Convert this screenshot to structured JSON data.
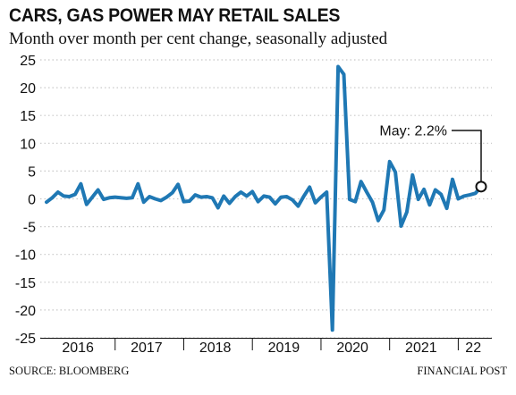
{
  "header": {
    "title": "CARS, GAS POWER MAY RETAIL SALES",
    "subtitle": "Month over month per cent change, seasonally adjusted"
  },
  "footer": {
    "source": "SOURCE: BLOOMBERG",
    "credit": "FINANCIAL POST"
  },
  "colors": {
    "line": "#1f78b4",
    "grid": "#c8c8c8",
    "text": "#111111"
  },
  "chart_data": {
    "type": "line",
    "title": "CARS, GAS POWER MAY RETAIL SALES",
    "subtitle": "Month over month per cent change, seasonally adjusted",
    "xlabel": "",
    "ylabel": "",
    "ylim": [
      -25,
      25
    ],
    "yticks": [
      25,
      20,
      15,
      10,
      5,
      0,
      -5,
      -10,
      -15,
      -20,
      -25
    ],
    "grid": "horizontal dotted",
    "x_tick_labels": [
      "2016",
      "2017",
      "2018",
      "2019",
      "2020",
      "2021",
      "22"
    ],
    "x_start": "2016-01",
    "x_end": "2022-05",
    "series": [
      {
        "values": [
          -0.6,
          0.2,
          1.2,
          0.5,
          0.4,
          0.8,
          2.7,
          -1.0,
          0.3,
          1.6,
          -0.1,
          0.2,
          0.3,
          0.2,
          0.1,
          0.2,
          2.7,
          -0.6,
          0.4,
          0.0,
          -0.3,
          0.3,
          1.1,
          2.6,
          -0.5,
          -0.4,
          0.7,
          0.3,
          0.4,
          0.2,
          -1.6,
          0.5,
          -0.8,
          0.4,
          1.2,
          0.5,
          1.3,
          -0.5,
          0.5,
          0.3,
          -0.9,
          0.3,
          0.4,
          -0.2,
          -1.3,
          0.5,
          2.1,
          -0.7,
          0.3,
          1.2,
          -23.6,
          23.8,
          22.4,
          -0.1,
          -0.5,
          3.1,
          1.2,
          -0.6,
          -3.9,
          -2.0,
          6.7,
          4.8,
          -4.9,
          -2.4,
          4.3,
          -0.1,
          1.7,
          -1.1,
          1.6,
          0.8,
          -1.7,
          3.5,
          0.0,
          0.5,
          0.7,
          1.0,
          2.2
        ]
      }
    ],
    "annotation": {
      "label": "May: 2.2%",
      "value": 2.2
    }
  }
}
